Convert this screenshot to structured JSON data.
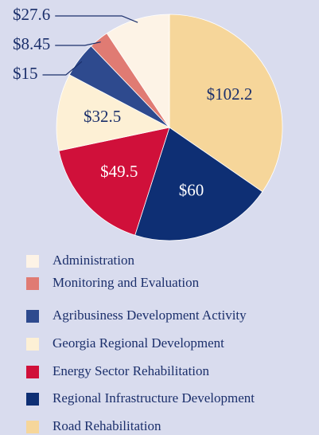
{
  "chart_data": {
    "type": "pie",
    "categories": [
      "Administration",
      "Monitoring and Evaluation",
      "Agribusiness Development Activity",
      "Georgia Regional Development",
      "Energy Sector Rehabilitation",
      "Regional Infrastructure Development",
      "Road Rehabilitation"
    ],
    "values": [
      27.6,
      8.45,
      15,
      32.5,
      49.5,
      60,
      102.2
    ],
    "value_labels": [
      "$27.6",
      "$8.45",
      "$15",
      "$32.5",
      "$49.5",
      "$60",
      "$102.2"
    ],
    "colors": [
      "#fdf3e6",
      "#e07b73",
      "#2e4a8e",
      "#fdf0d5",
      "#d0103a",
      "#0e2f74",
      "#f6d69a"
    ]
  }
}
